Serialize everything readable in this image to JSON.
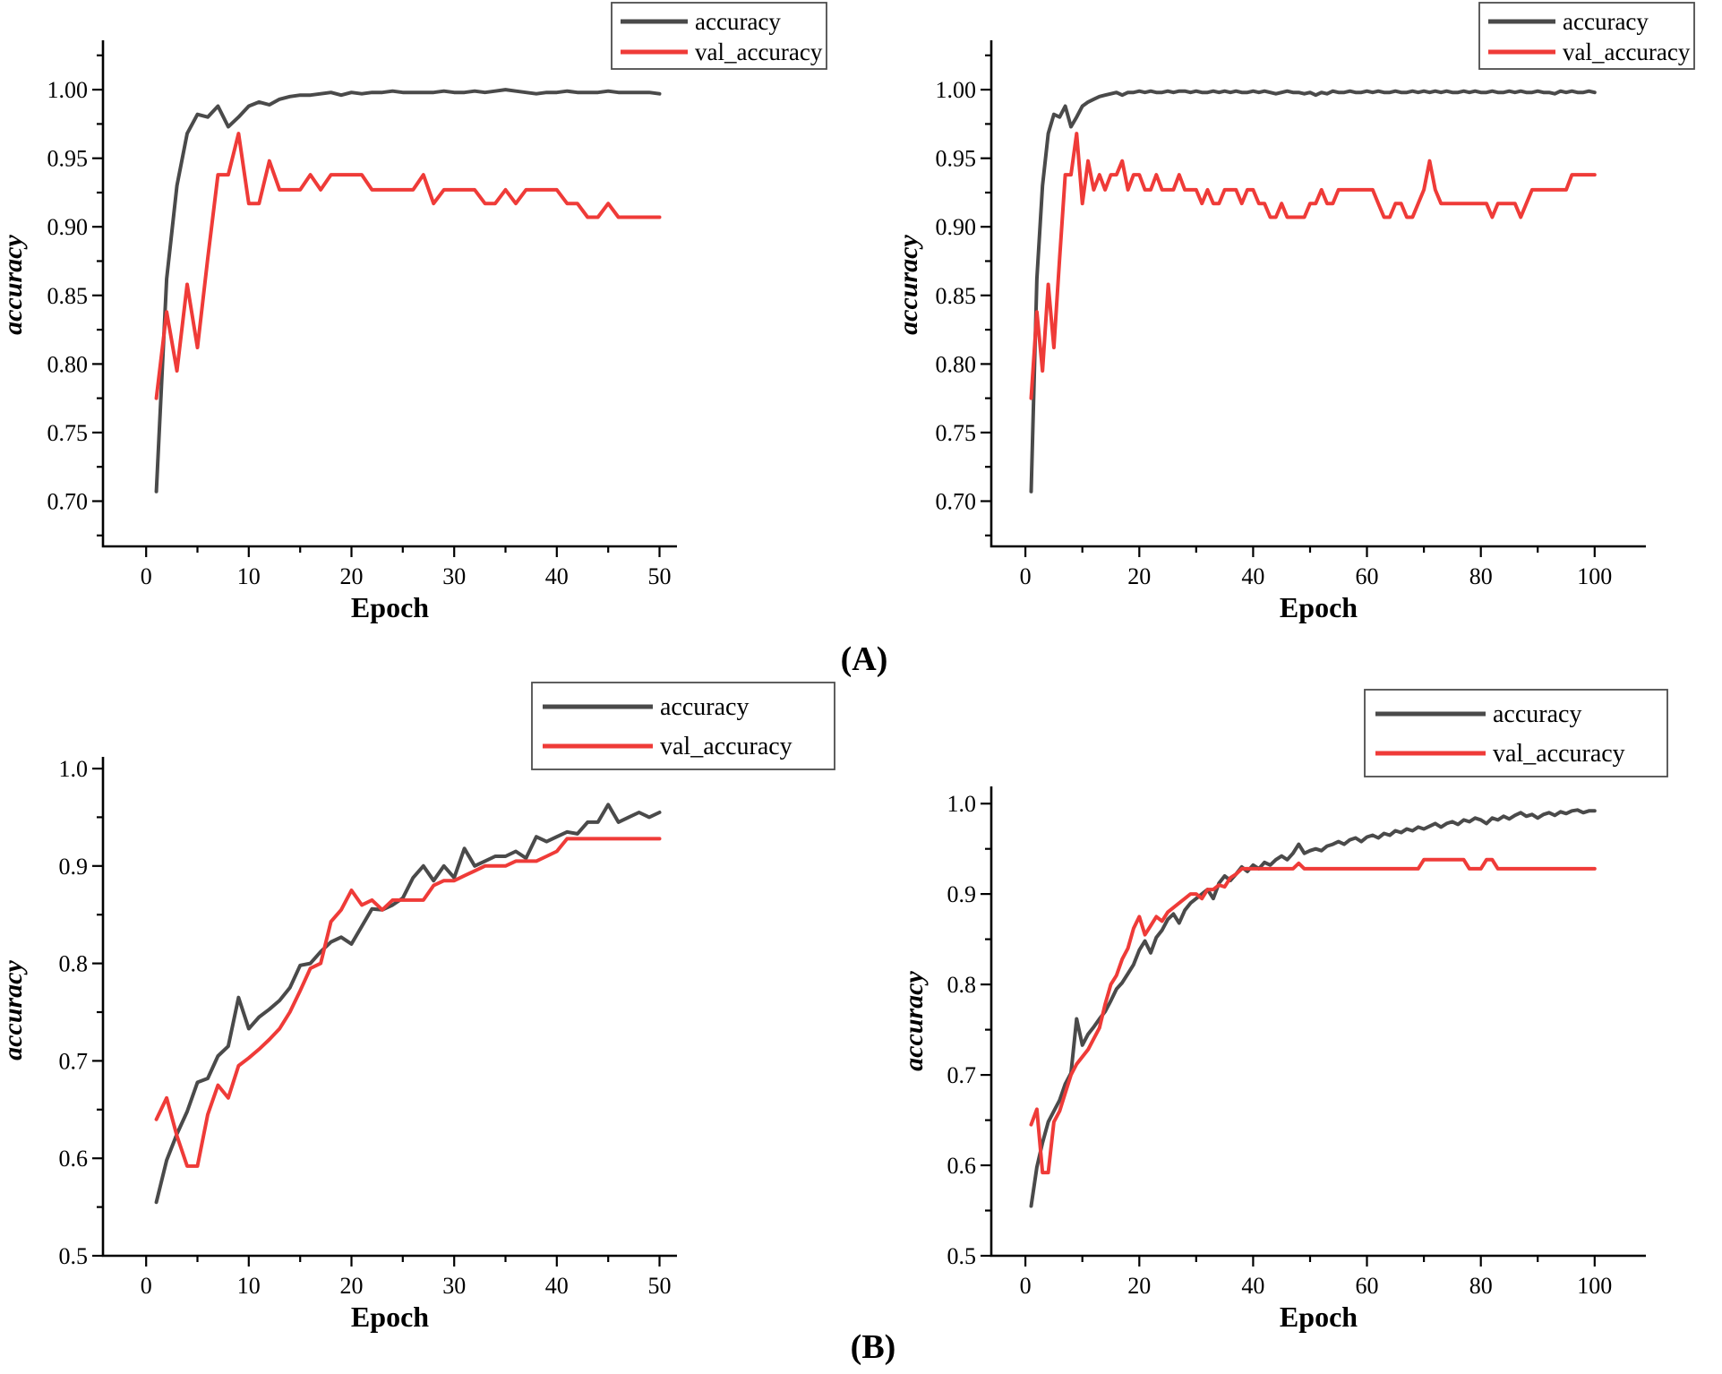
{
  "figure": {
    "panel_a_label": "(A)",
    "panel_b_label": "(B)",
    "background": "#ffffff"
  },
  "colors": {
    "accuracy": "#4a4a4a",
    "val_accuracy": "#ef3b38",
    "axis": "#000000",
    "legend_border": "#4d4d4d"
  },
  "chart_data": [
    {
      "id": "top-left",
      "panel": "A",
      "type": "line",
      "title": "",
      "xlabel": "Epoch",
      "ylabel": "accuracy",
      "x_start": 1,
      "x_step": 1,
      "epochs": 50,
      "xlim": [
        -4.2,
        51.7
      ],
      "ylim": [
        0.667,
        1.036
      ],
      "grid": false,
      "legend_position": "outside-top-right",
      "xticks": [
        {
          "value": 0,
          "label": "0"
        },
        {
          "value": 10,
          "label": "10"
        },
        {
          "value": 20,
          "label": "20"
        },
        {
          "value": 30,
          "label": "30"
        },
        {
          "value": 40,
          "label": "40"
        },
        {
          "value": 50,
          "label": "50"
        }
      ],
      "yticks": [
        {
          "value": 1.0,
          "label": "1.00"
        },
        {
          "value": 0.95,
          "label": "0.95"
        },
        {
          "value": 0.9,
          "label": "0.90"
        },
        {
          "value": 0.85,
          "label": "0.85"
        },
        {
          "value": 0.8,
          "label": "0.80"
        },
        {
          "value": 0.75,
          "label": "0.75"
        },
        {
          "value": 0.7,
          "label": "0.70"
        }
      ],
      "x_minor": [
        5,
        15,
        25,
        35,
        45
      ],
      "y_minor": [
        0.675,
        0.725,
        0.775,
        0.825,
        0.875,
        0.925,
        0.975,
        1.025
      ],
      "series": [
        {
          "name": "accuracy",
          "color": "#4a4a4a",
          "values": [
            0.707,
            0.862,
            0.93,
            0.968,
            0.982,
            0.98,
            0.988,
            0.973,
            0.98,
            0.988,
            0.991,
            0.989,
            0.993,
            0.995,
            0.996,
            0.996,
            0.997,
            0.998,
            0.996,
            0.998,
            0.997,
            0.998,
            0.998,
            0.999,
            0.998,
            0.998,
            0.998,
            0.998,
            0.999,
            0.998,
            0.998,
            0.999,
            0.998,
            0.999,
            1.0,
            0.999,
            0.998,
            0.997,
            0.998,
            0.998,
            0.999,
            0.998,
            0.998,
            0.998,
            0.999,
            0.998,
            0.998,
            0.998,
            0.998,
            0.997
          ]
        },
        {
          "name": "val_accuracy",
          "color": "#ef3b38",
          "values": [
            0.775,
            0.838,
            0.795,
            0.858,
            0.812,
            0.877,
            0.938,
            0.938,
            0.968,
            0.917,
            0.917,
            0.948,
            0.927,
            0.927,
            0.927,
            0.938,
            0.927,
            0.938,
            0.938,
            0.938,
            0.938,
            0.927,
            0.927,
            0.927,
            0.927,
            0.927,
            0.938,
            0.917,
            0.927,
            0.927,
            0.927,
            0.927,
            0.917,
            0.917,
            0.927,
            0.917,
            0.927,
            0.927,
            0.927,
            0.927,
            0.917,
            0.917,
            0.907,
            0.907,
            0.917,
            0.907,
            0.907,
            0.907,
            0.907,
            0.907
          ]
        }
      ]
    },
    {
      "id": "top-right",
      "panel": "A",
      "type": "line",
      "title": "",
      "xlabel": "Epoch",
      "ylabel": "accuracy",
      "x_start": 1,
      "x_step": 1,
      "epochs": 100,
      "xlim": [
        -6,
        109
      ],
      "ylim": [
        0.667,
        1.036
      ],
      "grid": false,
      "legend_position": "outside-top-right",
      "xticks": [
        {
          "value": 0,
          "label": "0"
        },
        {
          "value": 20,
          "label": "20"
        },
        {
          "value": 40,
          "label": "40"
        },
        {
          "value": 60,
          "label": "60"
        },
        {
          "value": 80,
          "label": "80"
        },
        {
          "value": 100,
          "label": "100"
        }
      ],
      "yticks": [
        {
          "value": 1.0,
          "label": "1.00"
        },
        {
          "value": 0.95,
          "label": "0.95"
        },
        {
          "value": 0.9,
          "label": "0.90"
        },
        {
          "value": 0.85,
          "label": "0.85"
        },
        {
          "value": 0.8,
          "label": "0.80"
        },
        {
          "value": 0.75,
          "label": "0.75"
        },
        {
          "value": 0.7,
          "label": "0.70"
        }
      ],
      "x_minor": [
        10,
        30,
        50,
        70,
        90
      ],
      "y_minor": [
        0.675,
        0.725,
        0.775,
        0.825,
        0.875,
        0.925,
        0.975,
        1.025
      ],
      "series": [
        {
          "name": "accuracy",
          "color": "#4a4a4a",
          "values": [
            0.707,
            0.862,
            0.93,
            0.968,
            0.982,
            0.98,
            0.988,
            0.973,
            0.98,
            0.988,
            0.991,
            0.993,
            0.995,
            0.996,
            0.997,
            0.998,
            0.996,
            0.998,
            0.998,
            0.999,
            0.998,
            0.999,
            0.998,
            0.998,
            0.999,
            0.998,
            0.999,
            0.999,
            0.998,
            0.999,
            0.998,
            0.998,
            0.999,
            0.998,
            0.999,
            0.998,
            0.999,
            0.998,
            0.998,
            0.999,
            0.998,
            0.999,
            0.998,
            0.997,
            0.998,
            0.999,
            0.998,
            0.998,
            0.997,
            0.998,
            0.996,
            0.998,
            0.997,
            0.999,
            0.998,
            0.998,
            0.999,
            0.998,
            0.998,
            0.999,
            0.998,
            0.999,
            0.998,
            0.998,
            0.999,
            0.998,
            0.998,
            0.999,
            0.998,
            0.999,
            0.998,
            0.999,
            0.998,
            0.999,
            0.998,
            0.998,
            0.999,
            0.998,
            0.999,
            0.998,
            0.998,
            0.999,
            0.998,
            0.998,
            0.999,
            0.998,
            0.999,
            0.998,
            0.998,
            0.999,
            0.998,
            0.998,
            0.997,
            0.999,
            0.998,
            0.999,
            0.998,
            0.998,
            0.999,
            0.998
          ]
        },
        {
          "name": "val_accuracy",
          "color": "#ef3b38",
          "values": [
            0.775,
            0.838,
            0.795,
            0.858,
            0.812,
            0.877,
            0.938,
            0.938,
            0.968,
            0.917,
            0.948,
            0.927,
            0.938,
            0.927,
            0.938,
            0.938,
            0.948,
            0.927,
            0.938,
            0.938,
            0.927,
            0.927,
            0.938,
            0.927,
            0.927,
            0.927,
            0.938,
            0.927,
            0.927,
            0.927,
            0.917,
            0.927,
            0.917,
            0.917,
            0.927,
            0.927,
            0.927,
            0.917,
            0.927,
            0.927,
            0.917,
            0.917,
            0.907,
            0.907,
            0.917,
            0.907,
            0.907,
            0.907,
            0.907,
            0.917,
            0.917,
            0.927,
            0.917,
            0.917,
            0.927,
            0.927,
            0.927,
            0.927,
            0.927,
            0.927,
            0.927,
            0.917,
            0.907,
            0.907,
            0.917,
            0.917,
            0.907,
            0.907,
            0.917,
            0.927,
            0.948,
            0.927,
            0.917,
            0.917,
            0.917,
            0.917,
            0.917,
            0.917,
            0.917,
            0.917,
            0.917,
            0.907,
            0.917,
            0.917,
            0.917,
            0.917,
            0.907,
            0.917,
            0.927,
            0.927,
            0.927,
            0.927,
            0.927,
            0.927,
            0.927,
            0.938,
            0.938,
            0.938,
            0.938,
            0.938
          ]
        }
      ]
    },
    {
      "id": "bottom-left",
      "panel": "B",
      "type": "line",
      "title": "",
      "xlabel": "Epoch",
      "ylabel": "accuracy",
      "x_start": 1,
      "x_step": 1,
      "epochs": 50,
      "xlim": [
        -4.2,
        51.7
      ],
      "ylim": [
        0.5,
        1.012
      ],
      "grid": false,
      "legend_position": "outside-top-right",
      "xticks": [
        {
          "value": 0,
          "label": "0"
        },
        {
          "value": 10,
          "label": "10"
        },
        {
          "value": 20,
          "label": "20"
        },
        {
          "value": 30,
          "label": "30"
        },
        {
          "value": 40,
          "label": "40"
        },
        {
          "value": 50,
          "label": "50"
        }
      ],
      "yticks": [
        {
          "value": 1.0,
          "label": "1.0"
        },
        {
          "value": 0.9,
          "label": "0.9"
        },
        {
          "value": 0.8,
          "label": "0.8"
        },
        {
          "value": 0.7,
          "label": "0.7"
        },
        {
          "value": 0.6,
          "label": "0.6"
        },
        {
          "value": 0.5,
          "label": "0.5"
        }
      ],
      "x_minor": [
        5,
        15,
        25,
        35,
        45
      ],
      "y_minor": [
        0.55,
        0.65,
        0.75,
        0.85,
        0.95
      ],
      "series": [
        {
          "name": "accuracy",
          "color": "#4a4a4a",
          "values": [
            0.555,
            0.598,
            0.625,
            0.648,
            0.678,
            0.682,
            0.705,
            0.715,
            0.765,
            0.733,
            0.745,
            0.753,
            0.762,
            0.775,
            0.798,
            0.8,
            0.812,
            0.822,
            0.827,
            0.82,
            0.838,
            0.856,
            0.855,
            0.86,
            0.867,
            0.888,
            0.9,
            0.885,
            0.9,
            0.888,
            0.918,
            0.9,
            0.905,
            0.91,
            0.91,
            0.915,
            0.908,
            0.93,
            0.925,
            0.93,
            0.935,
            0.933,
            0.945,
            0.945,
            0.963,
            0.945,
            0.95,
            0.955,
            0.95,
            0.955
          ]
        },
        {
          "name": "val_accuracy",
          "color": "#ef3b38",
          "values": [
            0.64,
            0.662,
            0.623,
            0.592,
            0.592,
            0.645,
            0.675,
            0.662,
            0.695,
            0.703,
            0.712,
            0.722,
            0.733,
            0.75,
            0.772,
            0.795,
            0.8,
            0.843,
            0.855,
            0.875,
            0.86,
            0.865,
            0.855,
            0.865,
            0.865,
            0.865,
            0.865,
            0.88,
            0.885,
            0.885,
            0.89,
            0.895,
            0.9,
            0.9,
            0.9,
            0.905,
            0.905,
            0.905,
            0.91,
            0.915,
            0.928,
            0.928,
            0.928,
            0.928,
            0.928,
            0.928,
            0.928,
            0.928,
            0.928,
            0.928
          ]
        }
      ]
    },
    {
      "id": "bottom-right",
      "panel": "B",
      "type": "line",
      "title": "",
      "xlabel": "Epoch",
      "ylabel": "accuracy",
      "x_start": 1,
      "x_step": 1,
      "epochs": 100,
      "xlim": [
        -6,
        109
      ],
      "ylim": [
        0.5,
        1.019
      ],
      "grid": false,
      "legend_position": "outside-top-right",
      "xticks": [
        {
          "value": 0,
          "label": "0"
        },
        {
          "value": 20,
          "label": "20"
        },
        {
          "value": 40,
          "label": "40"
        },
        {
          "value": 60,
          "label": "60"
        },
        {
          "value": 80,
          "label": "80"
        },
        {
          "value": 100,
          "label": "100"
        }
      ],
      "yticks": [
        {
          "value": 1.0,
          "label": "1.0"
        },
        {
          "value": 0.9,
          "label": "0.9"
        },
        {
          "value": 0.8,
          "label": "0.8"
        },
        {
          "value": 0.7,
          "label": "0.7"
        },
        {
          "value": 0.6,
          "label": "0.6"
        },
        {
          "value": 0.5,
          "label": "0.5"
        }
      ],
      "x_minor": [
        10,
        30,
        50,
        70,
        90
      ],
      "y_minor": [
        0.55,
        0.65,
        0.75,
        0.85,
        0.95
      ],
      "series": [
        {
          "name": "accuracy",
          "color": "#4a4a4a",
          "values": [
            0.555,
            0.598,
            0.625,
            0.648,
            0.66,
            0.672,
            0.69,
            0.702,
            0.762,
            0.733,
            0.745,
            0.753,
            0.762,
            0.77,
            0.782,
            0.795,
            0.802,
            0.812,
            0.822,
            0.838,
            0.848,
            0.835,
            0.852,
            0.86,
            0.872,
            0.878,
            0.868,
            0.882,
            0.89,
            0.895,
            0.9,
            0.905,
            0.895,
            0.912,
            0.92,
            0.915,
            0.922,
            0.93,
            0.925,
            0.932,
            0.928,
            0.935,
            0.932,
            0.938,
            0.942,
            0.938,
            0.945,
            0.955,
            0.945,
            0.948,
            0.95,
            0.948,
            0.953,
            0.955,
            0.958,
            0.955,
            0.96,
            0.962,
            0.958,
            0.963,
            0.965,
            0.962,
            0.967,
            0.965,
            0.97,
            0.968,
            0.972,
            0.97,
            0.974,
            0.972,
            0.975,
            0.978,
            0.974,
            0.978,
            0.98,
            0.977,
            0.982,
            0.98,
            0.984,
            0.982,
            0.978,
            0.984,
            0.982,
            0.986,
            0.983,
            0.987,
            0.99,
            0.986,
            0.988,
            0.984,
            0.988,
            0.99,
            0.987,
            0.991,
            0.989,
            0.992,
            0.993,
            0.99,
            0.992,
            0.992
          ]
        },
        {
          "name": "val_accuracy",
          "color": "#ef3b38",
          "values": [
            0.645,
            0.662,
            0.592,
            0.592,
            0.648,
            0.66,
            0.68,
            0.7,
            0.712,
            0.72,
            0.728,
            0.74,
            0.752,
            0.778,
            0.8,
            0.81,
            0.828,
            0.84,
            0.862,
            0.875,
            0.855,
            0.865,
            0.875,
            0.87,
            0.88,
            0.885,
            0.89,
            0.895,
            0.9,
            0.9,
            0.895,
            0.905,
            0.905,
            0.91,
            0.908,
            0.918,
            0.922,
            0.928,
            0.928,
            0.928,
            0.928,
            0.928,
            0.928,
            0.928,
            0.928,
            0.928,
            0.928,
            0.934,
            0.928,
            0.928,
            0.928,
            0.928,
            0.928,
            0.928,
            0.928,
            0.928,
            0.928,
            0.928,
            0.928,
            0.928,
            0.928,
            0.928,
            0.928,
            0.928,
            0.928,
            0.928,
            0.928,
            0.928,
            0.928,
            0.938,
            0.938,
            0.938,
            0.938,
            0.938,
            0.938,
            0.938,
            0.938,
            0.928,
            0.928,
            0.928,
            0.938,
            0.938,
            0.928,
            0.928,
            0.928,
            0.928,
            0.928,
            0.928,
            0.928,
            0.928,
            0.928,
            0.928,
            0.928,
            0.928,
            0.928,
            0.928,
            0.928,
            0.928,
            0.928,
            0.928
          ]
        }
      ]
    }
  ]
}
